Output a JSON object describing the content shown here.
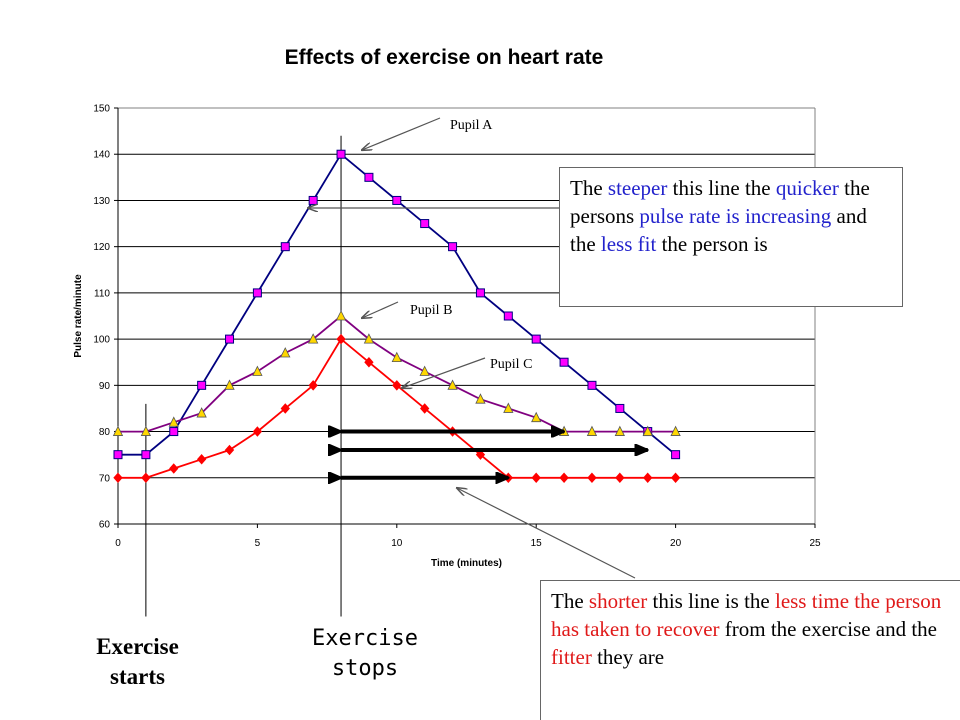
{
  "chart_data": {
    "type": "line",
    "title": "Effects of exercise on heart rate",
    "xlabel": "Time (minutes)",
    "ylabel": "Pulse rate/minute",
    "xlim": [
      0,
      25
    ],
    "ylim": [
      60,
      150
    ],
    "x_ticks": [
      "0",
      "5",
      "10",
      "15",
      "20",
      "25"
    ],
    "y_ticks": [
      "60",
      "70",
      "80",
      "90",
      "100",
      "110",
      "120",
      "130",
      "140",
      "150"
    ],
    "grid": "horizontal",
    "series": [
      {
        "name": "Pupil A",
        "color": "#000080",
        "marker_color": "#ff00ff",
        "marker": "square",
        "x": [
          0,
          1,
          2,
          3,
          4,
          5,
          6,
          7,
          8,
          9,
          10,
          11,
          12,
          13,
          14,
          15,
          16,
          17,
          18,
          19,
          20
        ],
        "y": [
          75,
          75,
          80,
          90,
          100,
          110,
          120,
          130,
          140,
          135,
          130,
          125,
          120,
          110,
          105,
          100,
          95,
          90,
          85,
          80,
          75
        ]
      },
      {
        "name": "Pupil B",
        "color": "#800080",
        "marker_color": "#ffd700",
        "marker": "triangle",
        "x": [
          0,
          1,
          2,
          3,
          4,
          5,
          6,
          7,
          8,
          9,
          10,
          11,
          12,
          13,
          14,
          15,
          16,
          17,
          18,
          19,
          20
        ],
        "y": [
          80,
          80,
          82,
          84,
          90,
          93,
          97,
          100,
          105,
          100,
          96,
          93,
          90,
          87,
          85,
          83,
          80,
          80,
          80,
          80,
          80
        ]
      },
      {
        "name": "Pupil C",
        "color": "#ff0000",
        "marker_color": "#ff0000",
        "marker": "diamond",
        "x": [
          0,
          1,
          2,
          3,
          4,
          5,
          6,
          7,
          8,
          9,
          10,
          11,
          12,
          13,
          14,
          15,
          16,
          17,
          18,
          19,
          20
        ],
        "y": [
          70,
          70,
          72,
          74,
          76,
          80,
          85,
          90,
          100,
          95,
          90,
          85,
          80,
          75,
          70,
          70,
          70,
          70,
          70,
          70,
          70
        ]
      }
    ],
    "recovery_arrows": [
      {
        "x_start": 8,
        "x_end": 16,
        "y": 80
      },
      {
        "x_start": 8,
        "x_end": 19,
        "y": 76
      },
      {
        "x_start": 8,
        "x_end": 14,
        "y": 70
      }
    ],
    "reference_lines": [
      {
        "x": 1,
        "y_min": 40,
        "y_max": 86
      },
      {
        "x": 8,
        "y_min": 40,
        "y_max": 144
      }
    ]
  },
  "annotations": {
    "exercise_starts": "Exercise starts",
    "exercise_starts_line1": "Exercise",
    "exercise_starts_line2": "starts",
    "exercise_stops_line1": "Exercise",
    "exercise_stops_line2": "stops",
    "steeper_note": {
      "p1": "The ",
      "p2": "steeper",
      "p3": " this line the ",
      "p4": "quicker",
      "p5": " the persons ",
      "p6": "pulse rate is increasing",
      "p7": " and the ",
      "p8": "less fit",
      "p9": " the person is"
    },
    "shorter_note": {
      "p1": "The ",
      "p2": "shorter",
      "p3": " this line is the ",
      "p4": "less time the person has taken to recover",
      "p5": " from the exercise and the ",
      "p6": "fitter",
      "p7": " they are"
    }
  }
}
